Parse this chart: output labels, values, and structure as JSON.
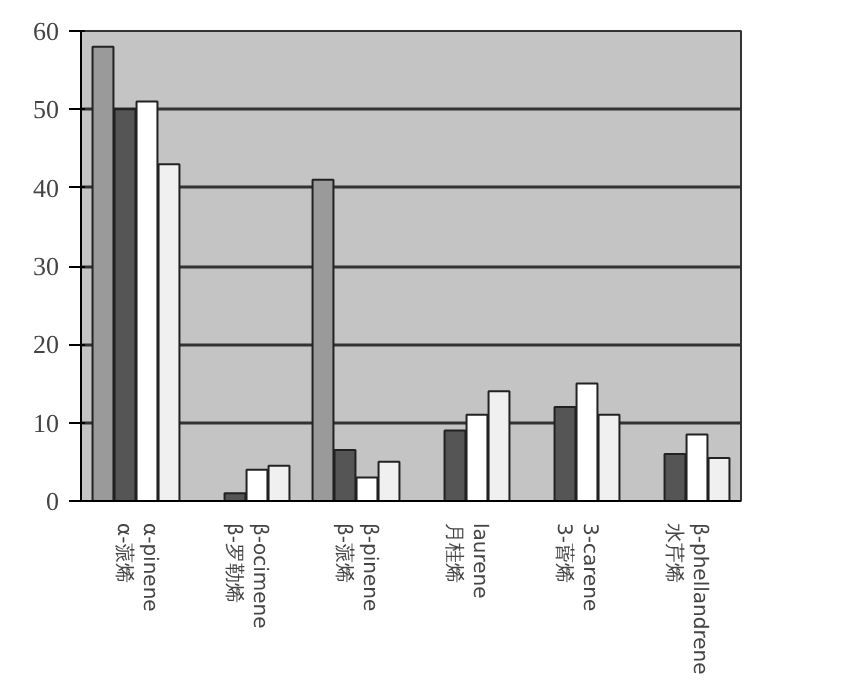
{
  "chart_data": {
    "type": "bar",
    "categories": [
      "α-pinene\nα-蒎烯",
      "β-ocimene\nβ-罗勒烯",
      "β-pinene\nβ-蒎烯",
      "laurene\n月桂烯",
      "3-carene\n3-蒈烯",
      "β-phellandrene\n水芹烯"
    ],
    "series": [
      {
        "color": "#9a9a9a",
        "values": [
          58,
          0,
          41,
          0,
          0,
          0
        ]
      },
      {
        "color": "#555555",
        "values": [
          50,
          1,
          6.5,
          9,
          12,
          6
        ]
      },
      {
        "color": "#ffffff",
        "values": [
          51,
          4,
          3,
          11,
          15,
          8.5
        ]
      },
      {
        "color": "#f0f0f0",
        "values": [
          43,
          4.5,
          5,
          14,
          11,
          5.5
        ]
      }
    ],
    "ylim": [
      0,
      60
    ],
    "yticks": [
      0,
      10,
      20,
      30,
      40,
      50,
      60
    ],
    "grid": "y"
  }
}
